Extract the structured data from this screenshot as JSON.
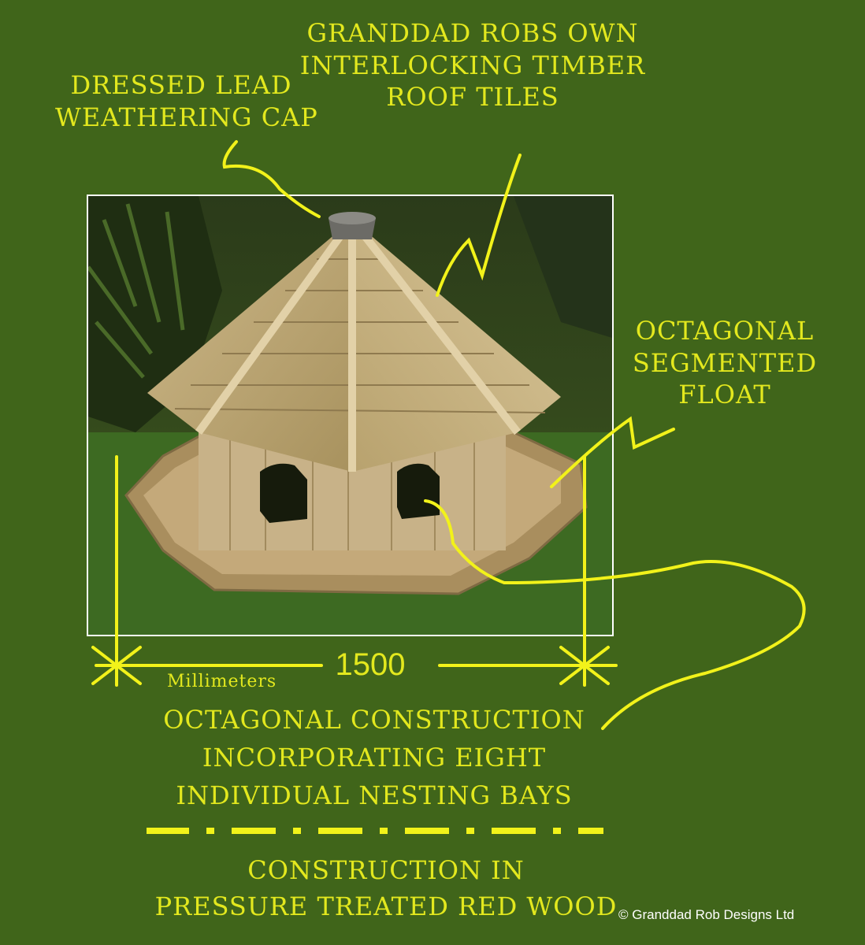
{
  "annotations": {
    "lead_cap": [
      "DRESSED LEAD",
      "WEATHERING CAP"
    ],
    "roof_tiles": [
      "GRANDDAD ROBS OWN",
      "INTERLOCKING  TIMBER",
      "ROOF TILES"
    ],
    "float": [
      "OCTAGONAL",
      "SEGMENTED",
      "FLOAT"
    ],
    "construction": [
      "OCTAGONAL  CONSTRUCTION",
      "INCORPORATING EIGHT",
      "INDIVIDUAL NESTING BAYS"
    ],
    "material": [
      "CONSTRUCTION IN",
      "PRESSURE TREATED  RED WOOD"
    ]
  },
  "dimension": {
    "value": "1500",
    "unit": "Millimeters"
  },
  "copyright": "© Granddad Rob Designs Ltd",
  "colors": {
    "background": "#40651a",
    "annotation": "#e3e81e",
    "border": "#ffffff"
  }
}
